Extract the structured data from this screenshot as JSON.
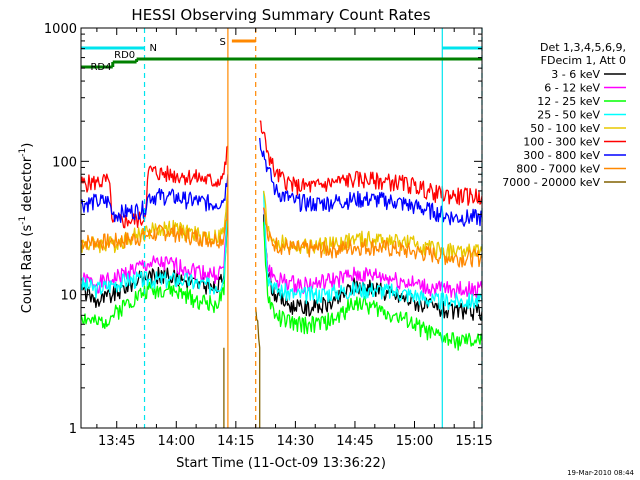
{
  "chart_data": {
    "type": "line",
    "title": "HESSI Observing Summary Count Rates",
    "xlabel": "Start Time (11-Oct-09 13:36:22)",
    "ylabel_parts": [
      "Count Rate (s",
      "-1",
      " detector",
      "-1",
      ")"
    ],
    "footer_timestamp": "19-Mar-2010 08:44",
    "x_unit": "minutes of day",
    "xlim": [
      "13:36",
      "15:17"
    ],
    "ylim": [
      1,
      1000
    ],
    "y_scale": "log",
    "grid": false,
    "legend_placement": "right",
    "x_ticks": [
      {
        "label": "13:45",
        "minute": 825
      },
      {
        "label": "14:00",
        "minute": 840
      },
      {
        "label": "14:15",
        "minute": 855
      },
      {
        "label": "14:30",
        "minute": 870
      },
      {
        "label": "14:45",
        "minute": 885
      },
      {
        "label": "15:00",
        "minute": 900
      },
      {
        "label": "15:15",
        "minute": 915
      }
    ],
    "y_ticks": [
      {
        "label": "1",
        "value": 1
      },
      {
        "label": "10",
        "value": 10
      },
      {
        "label": "100",
        "value": 100
      },
      {
        "label": "1000",
        "value": 1000
      }
    ],
    "legend": {
      "header": [
        "Det 1,3,4,5,6,9,",
        "FDecim 1, Att 0"
      ]
    },
    "flags": [
      {
        "label": "N",
        "color": "#00e5ee",
        "segments": [
          [
            "13:36",
            "13:52"
          ],
          [
            "15:07",
            "15:17"
          ]
        ]
      },
      {
        "label": "RD0",
        "color": "#008000",
        "segments": [
          [
            "13:44",
            "13:50"
          ]
        ]
      },
      {
        "label": "RD4",
        "color": "#008000",
        "segments": [
          [
            "13:36",
            "15:17"
          ]
        ]
      },
      {
        "label": "S",
        "color": "#ff8800",
        "segments": [
          [
            "14:14",
            "14:20"
          ]
        ]
      }
    ],
    "vlines": [
      {
        "time": "13:52",
        "color": "#00e5ee",
        "style": "dashed"
      },
      {
        "time": "15:07",
        "color": "#00e5ee",
        "style": "solid"
      },
      {
        "time": "15:17",
        "color": "#00e5ee",
        "style": "dashed"
      },
      {
        "time": "14:13",
        "color": "#ff8800",
        "style": "solid"
      },
      {
        "time": "14:20",
        "color": "#ff8800",
        "style": "dashed"
      }
    ],
    "series": [
      {
        "name": "3 - 6 keV",
        "color": "#000000",
        "points": [
          [
            "13:36",
            11
          ],
          [
            "13:40",
            9
          ],
          [
            "13:44",
            10
          ],
          [
            "13:48",
            12
          ],
          [
            "13:53",
            14
          ],
          [
            "13:58",
            14
          ],
          [
            "14:02",
            13
          ],
          [
            "14:06",
            12
          ],
          [
            "14:10",
            11
          ],
          [
            "14:12",
            14
          ],
          [
            "14:13",
            50
          ],
          [
            "14:20",
            null
          ],
          [
            "14:22",
            40
          ],
          [
            "14:23",
            14
          ],
          [
            "14:25",
            10
          ],
          [
            "14:30",
            8
          ],
          [
            "14:35",
            8
          ],
          [
            "14:40",
            9
          ],
          [
            "14:45",
            12
          ],
          [
            "14:50",
            11
          ],
          [
            "14:55",
            10
          ],
          [
            "15:00",
            9
          ],
          [
            "15:05",
            8
          ],
          [
            "15:10",
            7.5
          ],
          [
            "15:17",
            7.5
          ]
        ]
      },
      {
        "name": "6 - 12 keV",
        "color": "#ff00ff",
        "points": [
          [
            "13:36",
            13
          ],
          [
            "13:40",
            12
          ],
          [
            "13:44",
            13
          ],
          [
            "13:48",
            15
          ],
          [
            "13:53",
            17
          ],
          [
            "13:58",
            17
          ],
          [
            "14:02",
            16
          ],
          [
            "14:06",
            15
          ],
          [
            "14:10",
            14
          ],
          [
            "14:12",
            16
          ],
          [
            "14:13",
            55
          ],
          [
            "14:20",
            null
          ],
          [
            "14:22",
            45
          ],
          [
            "14:23",
            16
          ],
          [
            "14:25",
            13
          ],
          [
            "14:30",
            12
          ],
          [
            "14:35",
            12
          ],
          [
            "14:40",
            13
          ],
          [
            "14:45",
            14
          ],
          [
            "14:50",
            14
          ],
          [
            "14:55",
            13
          ],
          [
            "15:00",
            12
          ],
          [
            "15:05",
            11
          ],
          [
            "15:10",
            11
          ],
          [
            "15:17",
            11
          ]
        ]
      },
      {
        "name": "12 - 25 keV",
        "color": "#00ff00",
        "points": [
          [
            "13:36",
            7
          ],
          [
            "13:40",
            6
          ],
          [
            "13:44",
            7
          ],
          [
            "13:48",
            9
          ],
          [
            "13:53",
            11
          ],
          [
            "13:58",
            11
          ],
          [
            "14:02",
            10
          ],
          [
            "14:06",
            9
          ],
          [
            "14:10",
            8.5
          ],
          [
            "14:12",
            10
          ],
          [
            "14:13",
            45
          ],
          [
            "14:20",
            null
          ],
          [
            "14:22",
            35
          ],
          [
            "14:23",
            10
          ],
          [
            "14:25",
            7
          ],
          [
            "14:30",
            6
          ],
          [
            "14:35",
            6
          ],
          [
            "14:40",
            6.5
          ],
          [
            "14:45",
            9
          ],
          [
            "14:50",
            8
          ],
          [
            "14:55",
            7
          ],
          [
            "15:00",
            6
          ],
          [
            "15:05",
            5
          ],
          [
            "15:10",
            4.5
          ],
          [
            "15:17",
            4.5
          ]
        ]
      },
      {
        "name": "25 - 50 keV",
        "color": "#00ffff",
        "points": [
          [
            "13:36",
            12
          ],
          [
            "13:40",
            11
          ],
          [
            "13:44",
            12
          ],
          [
            "13:48",
            13
          ],
          [
            "13:53",
            13
          ],
          [
            "13:58",
            13
          ],
          [
            "14:02",
            13
          ],
          [
            "14:06",
            12
          ],
          [
            "14:10",
            11.5
          ],
          [
            "14:12",
            13
          ],
          [
            "14:13",
            60
          ],
          [
            "14:20",
            null
          ],
          [
            "14:22",
            60
          ],
          [
            "14:23",
            14
          ],
          [
            "14:25",
            11
          ],
          [
            "14:30",
            10
          ],
          [
            "14:35",
            10
          ],
          [
            "14:40",
            10.5
          ],
          [
            "14:45",
            11
          ],
          [
            "14:50",
            11
          ],
          [
            "14:55",
            10.5
          ],
          [
            "15:00",
            10
          ],
          [
            "15:05",
            9
          ],
          [
            "15:10",
            9
          ],
          [
            "15:17",
            9
          ]
        ]
      },
      {
        "name": "50 - 100 keV",
        "color": "#e8c800",
        "points": [
          [
            "13:36",
            24
          ],
          [
            "13:40",
            24
          ],
          [
            "13:44",
            24
          ],
          [
            "13:48",
            27
          ],
          [
            "13:53",
            30
          ],
          [
            "13:58",
            32
          ],
          [
            "14:02",
            30
          ],
          [
            "14:06",
            28
          ],
          [
            "14:10",
            27
          ],
          [
            "14:12",
            29
          ],
          [
            "14:13",
            65
          ],
          [
            "14:20",
            null
          ],
          [
            "14:22",
            60
          ],
          [
            "14:23",
            30
          ],
          [
            "14:25",
            25
          ],
          [
            "14:30",
            23
          ],
          [
            "14:35",
            23
          ],
          [
            "14:40",
            24
          ],
          [
            "14:45",
            26
          ],
          [
            "14:50",
            26
          ],
          [
            "14:55",
            25
          ],
          [
            "15:00",
            24
          ],
          [
            "15:05",
            22
          ],
          [
            "15:10",
            21
          ],
          [
            "15:17",
            21
          ]
        ]
      },
      {
        "name": "100 - 300 keV",
        "color": "#ff0000",
        "points": [
          [
            "13:36",
            68
          ],
          [
            "13:40",
            70
          ],
          [
            "13:43",
            72
          ],
          [
            "13:44",
            35
          ],
          [
            "13:48",
            36
          ],
          [
            "13:52",
            37
          ],
          [
            "13:53",
            85
          ],
          [
            "13:58",
            80
          ],
          [
            "14:02",
            78
          ],
          [
            "14:06",
            75
          ],
          [
            "14:10",
            70
          ],
          [
            "14:12",
            80
          ],
          [
            "14:13",
            130
          ],
          [
            "14:20",
            null
          ],
          [
            "14:21",
            200
          ],
          [
            "14:23",
            120
          ],
          [
            "14:25",
            80
          ],
          [
            "14:30",
            65
          ],
          [
            "14:35",
            65
          ],
          [
            "14:40",
            70
          ],
          [
            "14:45",
            74
          ],
          [
            "14:50",
            72
          ],
          [
            "14:55",
            70
          ],
          [
            "15:00",
            66
          ],
          [
            "15:05",
            58
          ],
          [
            "15:10",
            55
          ],
          [
            "15:17",
            55
          ]
        ]
      },
      {
        "name": "300 - 800 keV",
        "color": "#0000ff",
        "points": [
          [
            "13:36",
            48
          ],
          [
            "13:40",
            50
          ],
          [
            "13:43",
            50
          ],
          [
            "13:44",
            40
          ],
          [
            "13:48",
            42
          ],
          [
            "13:52",
            44
          ],
          [
            "13:53",
            55
          ],
          [
            "13:58",
            55
          ],
          [
            "14:02",
            52
          ],
          [
            "14:06",
            50
          ],
          [
            "14:10",
            48
          ],
          [
            "14:12",
            52
          ],
          [
            "14:13",
            80
          ],
          [
            "14:20",
            null
          ],
          [
            "14:21",
            150
          ],
          [
            "14:23",
            90
          ],
          [
            "14:25",
            60
          ],
          [
            "14:30",
            50
          ],
          [
            "14:35",
            48
          ],
          [
            "14:40",
            50
          ],
          [
            "14:45",
            52
          ],
          [
            "14:50",
            52
          ],
          [
            "14:55",
            50
          ],
          [
            "15:00",
            46
          ],
          [
            "15:05",
            42
          ],
          [
            "15:10",
            38
          ],
          [
            "15:17",
            38
          ]
        ]
      },
      {
        "name": "800 - 7000 keV",
        "color": "#ff8800",
        "points": [
          [
            "13:36",
            25
          ],
          [
            "13:40",
            25
          ],
          [
            "13:44",
            25
          ],
          [
            "13:48",
            26
          ],
          [
            "13:53",
            28
          ],
          [
            "13:58",
            30
          ],
          [
            "14:02",
            28
          ],
          [
            "14:06",
            27
          ],
          [
            "14:10",
            26
          ],
          [
            "14:12",
            27
          ],
          [
            "14:13",
            50
          ],
          [
            "14:20",
            null
          ],
          [
            "14:22",
            45
          ],
          [
            "14:23",
            27
          ],
          [
            "14:25",
            24
          ],
          [
            "14:30",
            22
          ],
          [
            "14:35",
            22
          ],
          [
            "14:40",
            22
          ],
          [
            "14:45",
            23
          ],
          [
            "14:50",
            23
          ],
          [
            "14:55",
            22
          ],
          [
            "15:00",
            21
          ],
          [
            "15:05",
            20
          ],
          [
            "15:10",
            19
          ],
          [
            "15:17",
            19
          ]
        ]
      },
      {
        "name": "7000 - 20000 keV",
        "color": "#806000",
        "points": [
          [
            "14:12",
            1
          ],
          [
            "14:12",
            4
          ],
          [
            "14:13",
            null
          ],
          [
            "14:20",
            null
          ],
          [
            "14:20",
            8
          ],
          [
            "14:21",
            4
          ],
          [
            "14:21",
            1
          ]
        ]
      }
    ]
  }
}
